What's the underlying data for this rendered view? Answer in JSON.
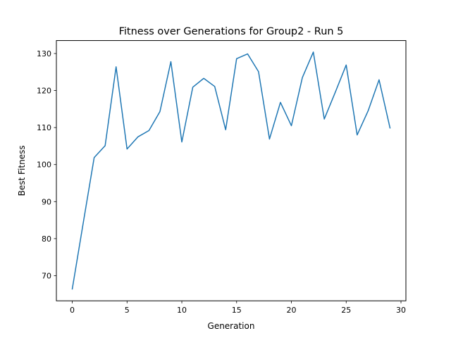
{
  "chart_data": {
    "type": "line",
    "title": "Fitness over Generations for Group2 - Run 5",
    "xlabel": "Generation",
    "ylabel": "Best Fitness",
    "xlim": [
      -1.45,
      30.45
    ],
    "ylim": [
      63.2,
      133.5
    ],
    "xticks": [
      0,
      5,
      10,
      15,
      20,
      25,
      30
    ],
    "yticks": [
      70,
      80,
      90,
      100,
      110,
      120,
      130
    ],
    "grid": false,
    "legend": "none",
    "line_color": "#1f77b4",
    "series": [
      {
        "x": [
          0,
          1,
          2,
          3,
          4,
          5,
          6,
          7,
          8,
          9,
          10,
          11,
          12,
          13,
          14,
          15,
          16,
          17,
          18,
          19,
          20,
          21,
          22,
          23,
          24,
          25,
          26,
          27,
          28,
          29
        ],
        "values": [
          66.4,
          84.2,
          101.9,
          105.1,
          126.4,
          104.2,
          107.5,
          109.2,
          114.3,
          127.8,
          106.1,
          120.9,
          123.3,
          121.1,
          109.4,
          128.6,
          129.9,
          125.1,
          106.9,
          116.8,
          110.5,
          123.5,
          130.4,
          112.3,
          119.5,
          126.9,
          108.0,
          114.5,
          122.9,
          109.9
        ]
      }
    ]
  }
}
